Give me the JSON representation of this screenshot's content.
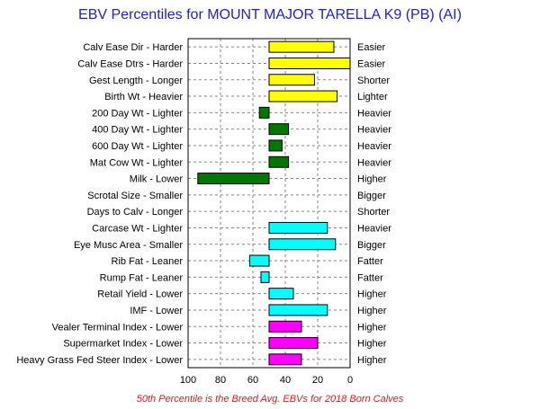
{
  "chart_data": {
    "type": "bar",
    "orientation": "horizontal",
    "title": "EBV Percentiles for MOUNT MAJOR TARELLA K9 (PB) (AI)",
    "footnote": "50th Percentile is the Breed Avg. EBVs for 2018 Born Calves",
    "x_axis": {
      "reversed": true,
      "range": [
        100,
        0
      ],
      "ticks": [
        100,
        80,
        60,
        40,
        20,
        0
      ]
    },
    "grid": true,
    "baseline": 50,
    "categories": [
      {
        "label": "Calv Ease Dir - Harder",
        "right_label": "Easier",
        "value": 10,
        "color": "#ffff00"
      },
      {
        "label": "Calv Ease Dtrs - Harder",
        "right_label": "Easier",
        "value": 0,
        "color": "#ffff00"
      },
      {
        "label": "Gest Length - Longer",
        "right_label": "Shorter",
        "value": 22,
        "color": "#ffff00"
      },
      {
        "label": "Birth Wt - Heavier",
        "right_label": "Lighter",
        "value": 8,
        "color": "#ffff00"
      },
      {
        "label": "200 Day Wt - Lighter",
        "right_label": "Heavier",
        "value": 56,
        "color": "#007800"
      },
      {
        "label": "400 Day Wt - Lighter",
        "right_label": "Heavier",
        "value": 38,
        "color": "#007800"
      },
      {
        "label": "600 Day Wt - Lighter",
        "right_label": "Heavier",
        "value": 42,
        "color": "#007800"
      },
      {
        "label": "Mat Cow Wt - Lighter",
        "right_label": "Heavier",
        "value": 38,
        "color": "#007800"
      },
      {
        "label": "Milk - Lower",
        "right_label": "Higher",
        "value": 94,
        "color": "#007800"
      },
      {
        "label": "Scrotal Size - Smaller",
        "right_label": "Bigger",
        "value": null,
        "color": "#007800"
      },
      {
        "label": "Days to Calv - Longer",
        "right_label": "Shorter",
        "value": null,
        "color": "#007800"
      },
      {
        "label": "Carcase Wt - Lighter",
        "right_label": "Heavier",
        "value": 14,
        "color": "#00ffff"
      },
      {
        "label": "Eye Musc Area - Smaller",
        "right_label": "Bigger",
        "value": 9,
        "color": "#00ffff"
      },
      {
        "label": "Rib Fat - Leaner",
        "right_label": "Fatter",
        "value": 62,
        "color": "#00ffff"
      },
      {
        "label": "Rump Fat - Leaner",
        "right_label": "Fatter",
        "value": 55,
        "color": "#00ffff"
      },
      {
        "label": "Retail Yield - Lower",
        "right_label": "Higher",
        "value": 35,
        "color": "#00ffff"
      },
      {
        "label": "IMF - Lower",
        "right_label": "Higher",
        "value": 14,
        "color": "#00ffff"
      },
      {
        "label": "Vealer Terminal Index - Lower",
        "right_label": "Higher",
        "value": 30,
        "color": "#ff00ff"
      },
      {
        "label": "Supermarket Index - Lower",
        "right_label": "Higher",
        "value": 20,
        "color": "#ff00ff"
      },
      {
        "label": "Heavy Grass Fed Steer Index - Lower",
        "right_label": "Higher",
        "value": 30,
        "color": "#ff00ff"
      }
    ]
  }
}
